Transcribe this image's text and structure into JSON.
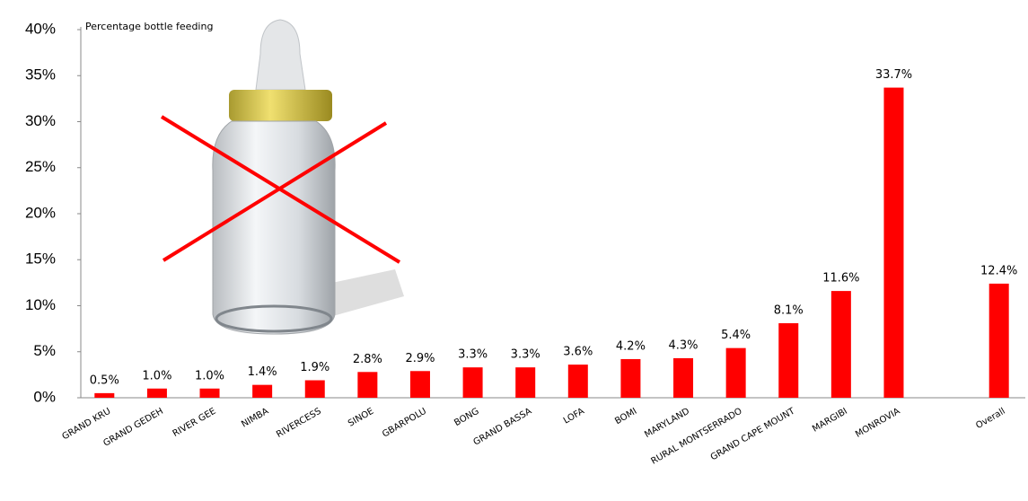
{
  "chart_data": {
    "type": "bar",
    "title": "Percentage bottle feeding",
    "categories": [
      "GRAND KRU",
      "GRAND GEDEH",
      "RIVER GEE",
      "NIMBA",
      "RIVERCESS",
      "SINOE",
      "GBARPOLU",
      "BONG",
      "GRAND BASSA",
      "LOFA",
      "BOMI",
      "MARYLAND",
      "RURAL MONTSERRADO",
      "GRAND CAPE MOUNT",
      "MARGIBI",
      "MONROVIA",
      null,
      "Overall"
    ],
    "values": [
      0.5,
      1.0,
      1.0,
      1.4,
      1.9,
      2.8,
      2.9,
      3.3,
      3.3,
      3.6,
      4.2,
      4.3,
      5.4,
      8.1,
      11.6,
      33.7,
      null,
      12.4
    ],
    "value_labels": [
      "0.5%",
      "1.0%",
      "1.0%",
      "1.4%",
      "1.9%",
      "2.8%",
      "2.9%",
      "3.3%",
      "3.3%",
      "3.6%",
      "4.2%",
      "4.3%",
      "5.4%",
      "8.1%",
      "11.6%",
      "33.7%",
      null,
      "12.4%"
    ],
    "color": "#ff0000",
    "ylim": [
      0,
      40
    ],
    "yticks": [
      {
        "value": 0,
        "label": "0%"
      },
      {
        "value": 5,
        "label": "5%"
      },
      {
        "value": 10,
        "label": "10%"
      },
      {
        "value": 15,
        "label": "15%"
      },
      {
        "value": 20,
        "label": "20%"
      },
      {
        "value": 25,
        "label": "25%"
      },
      {
        "value": 30,
        "label": "30%"
      },
      {
        "value": 35,
        "label": "35%"
      },
      {
        "value": 40,
        "label": "40%"
      }
    ],
    "grid": false
  }
}
